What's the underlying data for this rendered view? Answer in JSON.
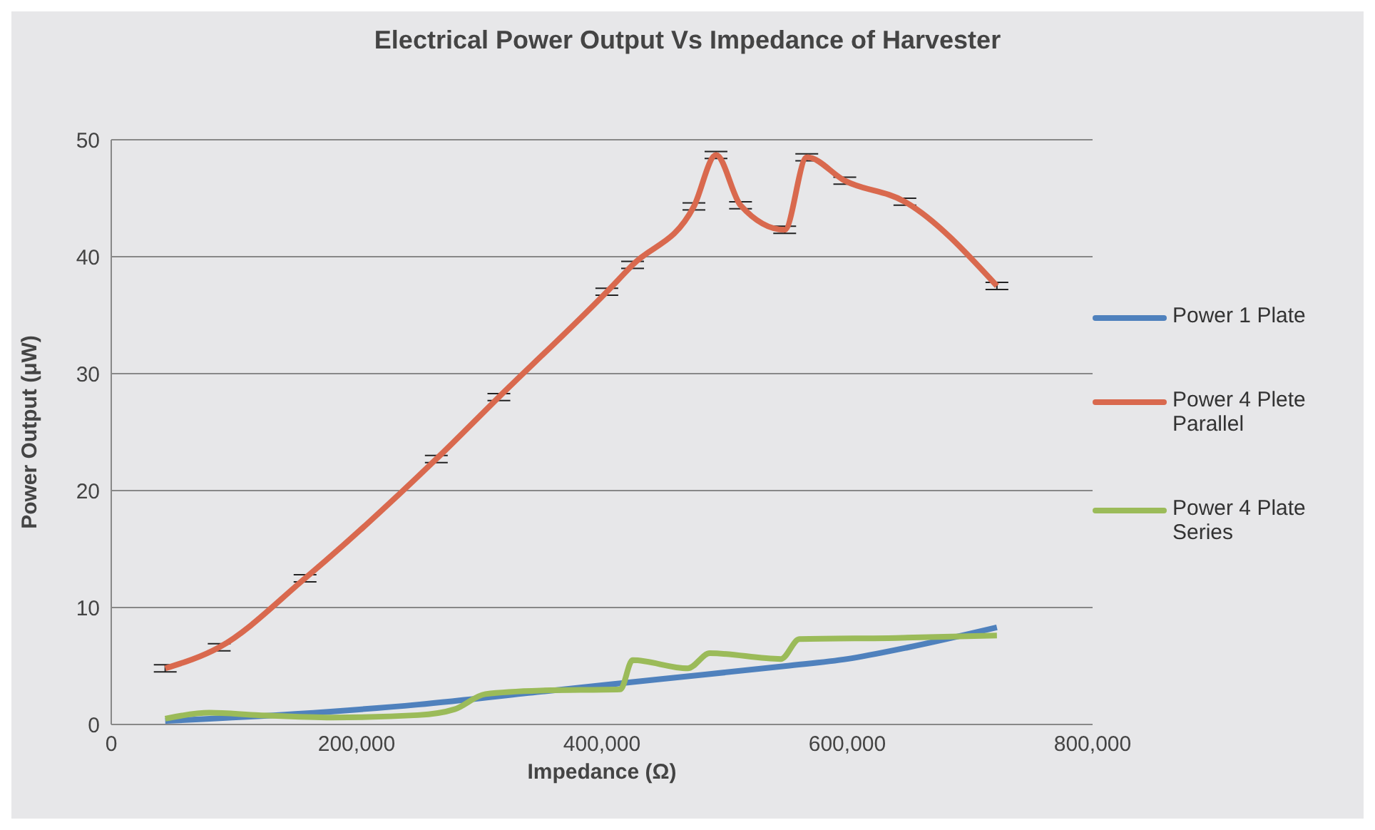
{
  "chart_data": {
    "type": "line",
    "title": "Electrical Power Output Vs Impedance of Harvester",
    "xlabel": "Impedance (Ω)",
    "ylabel": "Power Output (μW)",
    "xlim": [
      0,
      800000
    ],
    "xticks": [
      0,
      {
        "value": 200000,
        "label": "200,000"
      },
      {
        "value": 400000,
        "label": "400,000"
      },
      {
        "value": 600000,
        "label": "600,000"
      },
      {
        "value": 800000,
        "label": "800,000"
      }
    ],
    "ylim": [
      0,
      50
    ],
    "yticks": [
      0,
      10,
      20,
      30,
      40,
      50
    ],
    "grid": "y",
    "legend": "right",
    "marker": "none",
    "line_style": "solid",
    "series": [
      {
        "name": "Power 1 Plate",
        "color": "#4f81bd",
        "x": [
          44000,
          150000,
          250000,
          350000,
          450000,
          550000,
          600000,
          650000,
          722000
        ],
        "values": [
          0.3,
          0.9,
          1.7,
          2.8,
          3.9,
          5.0,
          5.6,
          6.6,
          8.3
        ]
      },
      {
        "name": "Power 4 Plete Parallel",
        "color": "#d9694e",
        "x": [
          44000,
          88000,
          158000,
          265000,
          316000,
          404000,
          425000,
          475000,
          493000,
          513000,
          549000,
          567000,
          598000,
          647000,
          722000
        ],
        "values": [
          4.8,
          6.6,
          12.5,
          22.7,
          28.0,
          37.0,
          39.3,
          44.3,
          48.7,
          44.4,
          42.3,
          48.5,
          46.5,
          44.7,
          37.5
        ],
        "errors": [
          0.3,
          0.3,
          0.3,
          0.3,
          0.3,
          0.3,
          0.3,
          0.3,
          0.3,
          0.3,
          0.3,
          0.3,
          0.3,
          0.3,
          0.3
        ]
      },
      {
        "name": "Power 4 Plate Series",
        "color": "#9bbb59",
        "x": [
          44000,
          80000,
          120000,
          180000,
          250000,
          280000,
          305000,
          350000,
          415000,
          425000,
          470000,
          488000,
          546000,
          561000,
          640000,
          722000
        ],
        "values": [
          0.5,
          1.0,
          0.8,
          0.6,
          0.8,
          1.3,
          2.6,
          2.9,
          3.0,
          5.5,
          4.8,
          6.1,
          5.6,
          7.3,
          7.4,
          7.6
        ]
      }
    ]
  }
}
